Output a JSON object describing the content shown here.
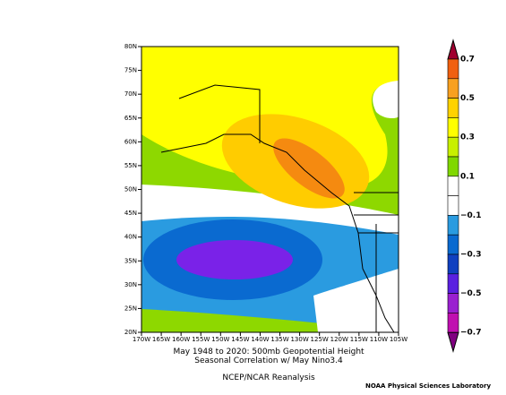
{
  "map": {
    "title_lines": [
      "May 1948 to 2020: 500mb Geopotential Height",
      "Seasonal Correlation w/ May Nino3.4"
    ],
    "source": "NCEP/NCAR Reanalysis",
    "credit": "NOAA Physical Sciences Laboratory",
    "lat_labels": [
      "80N",
      "75N",
      "70N",
      "65N",
      "60N",
      "55N",
      "50N",
      "45N",
      "40N",
      "35N",
      "30N",
      "25N",
      "20N"
    ],
    "lon_labels": [
      "170W",
      "165W",
      "160W",
      "155W",
      "150W",
      "145W",
      "140W",
      "135W",
      "130W",
      "125W",
      "120W",
      "115W",
      "110W",
      "105W"
    ],
    "colorbar_labels": [
      "0.7",
      "0.5",
      "0.3",
      "0.1",
      "−0.1",
      "−0.3",
      "−0.5",
      "−0.7"
    ]
  }
}
